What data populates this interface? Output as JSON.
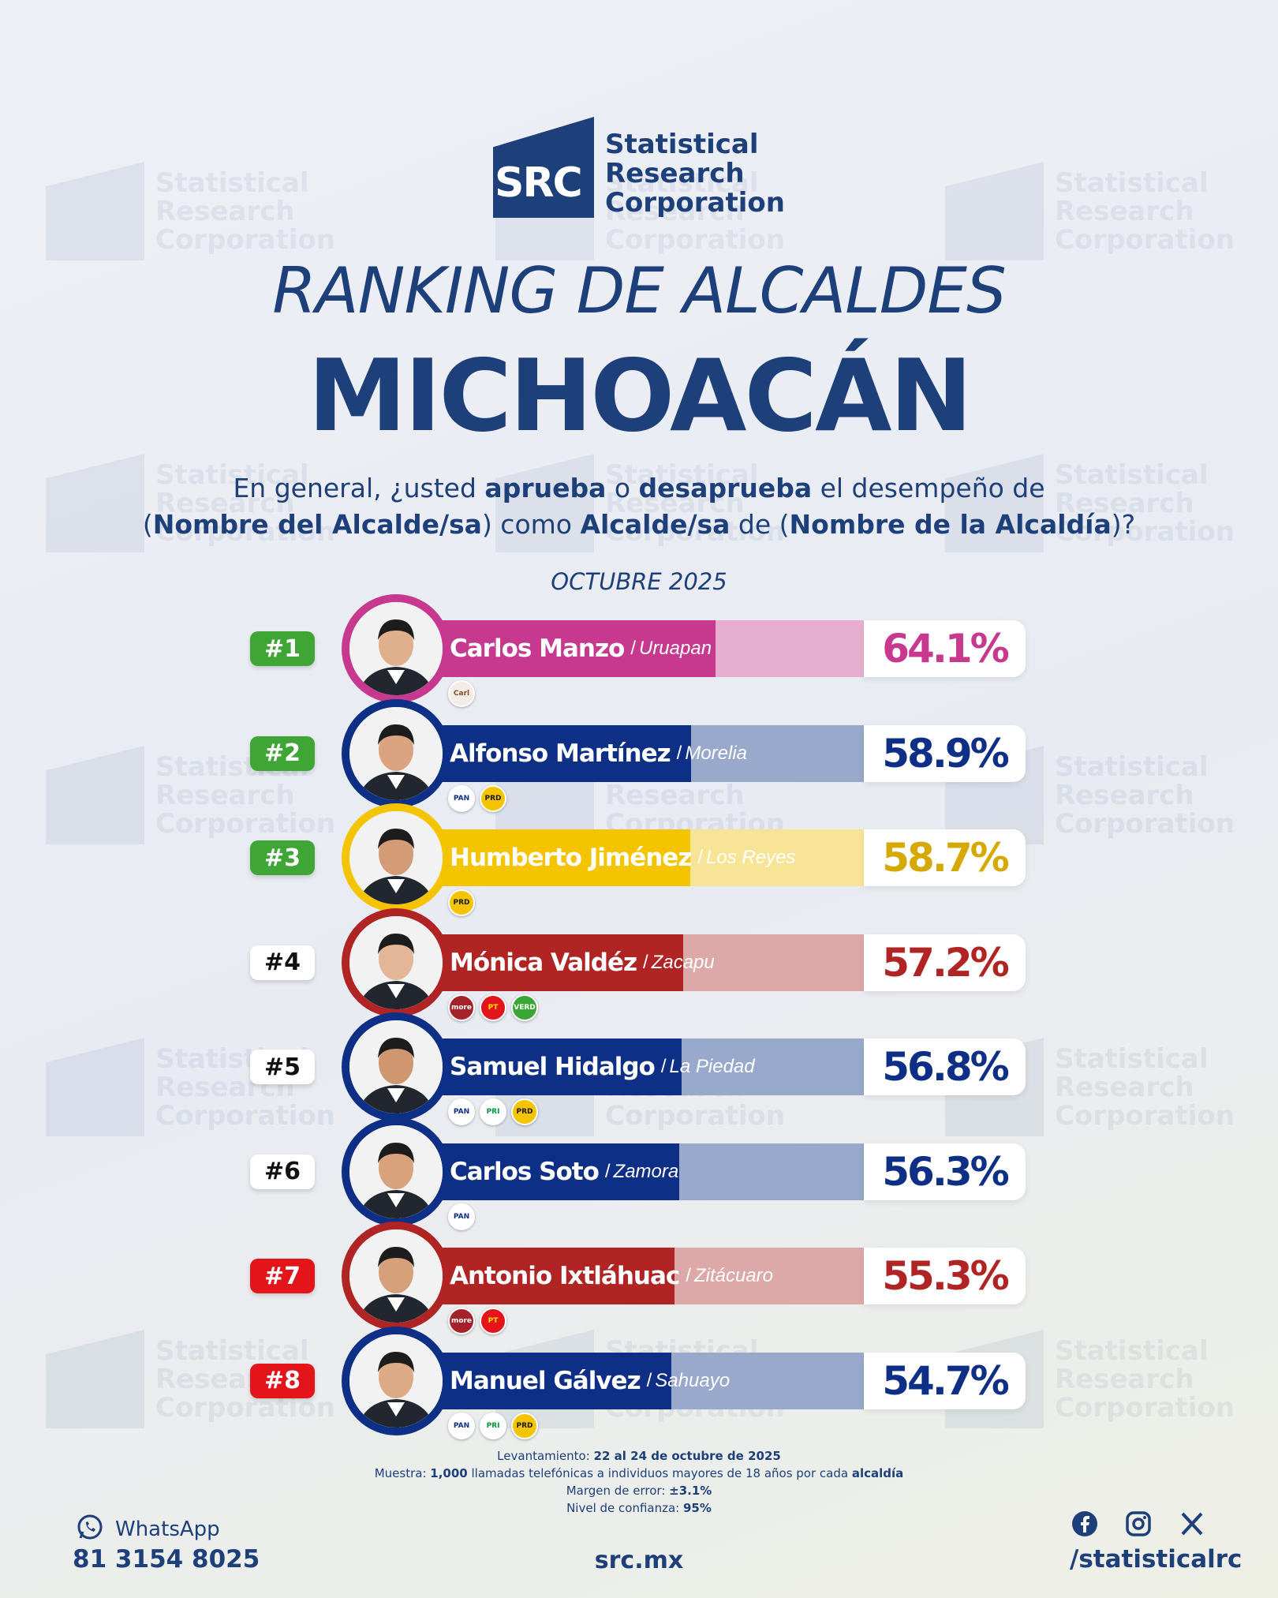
{
  "brand": {
    "logo_abbr": "SRC",
    "logo_lines": [
      "Statistical",
      "Research",
      "Corporation"
    ],
    "color": "#1d3f7a"
  },
  "header": {
    "subtitle": "RANKING DE ALCALDES",
    "title": "MICHOACÁN",
    "question_parts": [
      {
        "t": "En general, ¿usted ",
        "b": false
      },
      {
        "t": "aprueba",
        "b": true
      },
      {
        "t": " o ",
        "b": false
      },
      {
        "t": "desaprueba",
        "b": true
      },
      {
        "t": " el desempeño de",
        "b": false
      },
      {
        "t": "\n",
        "b": false
      },
      {
        "t": "(",
        "b": false
      },
      {
        "t": "Nombre del Alcalde/sa",
        "b": true
      },
      {
        "t": ") como ",
        "b": false
      },
      {
        "t": "Alcalde/sa",
        "b": true
      },
      {
        "t": " de (",
        "b": false
      },
      {
        "t": "Nombre de la Alcaldía",
        "b": true
      },
      {
        "t": ")?",
        "b": false
      }
    ],
    "date": "OCTUBRE 2025"
  },
  "chart_data": {
    "type": "bar",
    "orientation": "horizontal",
    "categories": [
      "Carlos Manzo",
      "Alfonso Martínez",
      "Humberto Jiménez",
      "Mónica Valdéz",
      "Samuel Hidalgo",
      "Carlos Soto",
      "Antonio Ixtláhuac",
      "Manuel Gálvez"
    ],
    "values": [
      64.1,
      58.9,
      58.7,
      57.2,
      56.8,
      56.3,
      55.3,
      54.7
    ],
    "xlim": [
      0,
      100
    ],
    "items": [
      {
        "rank": "#1",
        "name": "Carlos Manzo",
        "city": "Uruapan",
        "value": 64.1,
        "label": "64.1%",
        "color": "#c6398e",
        "light": "#e6afd0",
        "badge_bg": "#3fa535",
        "badge_fg": "#ffffff",
        "parties": [
          {
            "name": "Carlos Manzo",
            "bg": "#f3ede6",
            "fg": "#8a4a2a"
          }
        ]
      },
      {
        "rank": "#2",
        "name": "Alfonso Martínez",
        "city": "Morelia",
        "value": 58.9,
        "label": "58.9%",
        "color": "#0e2f86",
        "light": "#98a9cc",
        "badge_bg": "#3fa535",
        "badge_fg": "#ffffff",
        "parties": [
          {
            "name": "PAN",
            "bg": "#ffffff",
            "fg": "#0e2f86"
          },
          {
            "name": "PRD",
            "bg": "#f5c400",
            "fg": "#1a1a1a"
          }
        ]
      },
      {
        "rank": "#3",
        "name": "Humberto Jiménez",
        "city": "Los Reyes",
        "value": 58.7,
        "label": "58.7%",
        "color": "#f5c400",
        "light": "#f7e497",
        "badge_bg": "#3fa535",
        "badge_fg": "#ffffff",
        "parties": [
          {
            "name": "PRD",
            "bg": "#f5c400",
            "fg": "#1a1a1a"
          }
        ]
      },
      {
        "rank": "#4",
        "name": "Mónica Valdéz",
        "city": "Zacapu",
        "value": 57.2,
        "label": "57.2%",
        "color": "#b12424",
        "light": "#dda8a8",
        "badge_bg": "#ffffff",
        "badge_fg": "#111111",
        "parties": [
          {
            "name": "morena",
            "bg": "#a6222a",
            "fg": "#ffffff"
          },
          {
            "name": "PT",
            "bg": "#e3151a",
            "fg": "#ffe000"
          },
          {
            "name": "VERDE",
            "bg": "#3aa635",
            "fg": "#ffffff"
          }
        ]
      },
      {
        "rank": "#5",
        "name": "Samuel Hidalgo",
        "city": "La Piedad",
        "value": 56.8,
        "label": "56.8%",
        "color": "#0e2f86",
        "light": "#98a9cc",
        "badge_bg": "#ffffff",
        "badge_fg": "#111111",
        "parties": [
          {
            "name": "PAN",
            "bg": "#ffffff",
            "fg": "#0e2f86"
          },
          {
            "name": "PRI",
            "bg": "#ffffff",
            "fg": "#009639"
          },
          {
            "name": "PRD",
            "bg": "#f5c400",
            "fg": "#1a1a1a"
          }
        ]
      },
      {
        "rank": "#6",
        "name": "Carlos Soto",
        "city": "Zamora",
        "value": 56.3,
        "label": "56.3%",
        "color": "#0e2f86",
        "light": "#98a9cc",
        "badge_bg": "#ffffff",
        "badge_fg": "#111111",
        "parties": [
          {
            "name": "PAN",
            "bg": "#ffffff",
            "fg": "#0e2f86"
          }
        ]
      },
      {
        "rank": "#7",
        "name": "Antonio Ixtláhuac",
        "city": "Zitácuaro",
        "value": 55.3,
        "label": "55.3%",
        "color": "#b12424",
        "light": "#dda8a8",
        "badge_bg": "#e3151a",
        "badge_fg": "#ffffff",
        "parties": [
          {
            "name": "morena",
            "bg": "#a6222a",
            "fg": "#ffffff"
          },
          {
            "name": "PT",
            "bg": "#e3151a",
            "fg": "#ffe000"
          }
        ]
      },
      {
        "rank": "#8",
        "name": "Manuel Gálvez",
        "city": "Sahuayo",
        "value": 54.7,
        "label": "54.7%",
        "color": "#0e2f86",
        "light": "#98a9cc",
        "badge_bg": "#e3151a",
        "badge_fg": "#ffffff",
        "parties": [
          {
            "name": "PAN",
            "bg": "#ffffff",
            "fg": "#0e2f86"
          },
          {
            "name": "PRI",
            "bg": "#ffffff",
            "fg": "#009639"
          },
          {
            "name": "PRD",
            "bg": "#f5c400",
            "fg": "#1a1a1a"
          }
        ]
      }
    ]
  },
  "footnote": [
    [
      {
        "t": "Levantamiento: ",
        "b": false
      },
      {
        "t": "22 al 24 de octubre de 2025",
        "b": true
      }
    ],
    [
      {
        "t": "Muestra: ",
        "b": false
      },
      {
        "t": "1,000",
        "b": true
      },
      {
        "t": " llamadas telefónicas a individuos mayores de 18 años por cada ",
        "b": false
      },
      {
        "t": "alcaldía",
        "b": true
      }
    ],
    [
      {
        "t": "Margen de error: ",
        "b": false
      },
      {
        "t": "±3.1%",
        "b": true
      }
    ],
    [
      {
        "t": "Nivel de confianza: ",
        "b": false
      },
      {
        "t": "95%",
        "b": true
      }
    ]
  ],
  "footer": {
    "whatsapp_label": "WhatsApp",
    "phone": "81 3154 8025",
    "site": "src.mx",
    "handle": "/statisticalrc",
    "social_icons": [
      "facebook-icon",
      "instagram-icon",
      "x-icon"
    ]
  }
}
